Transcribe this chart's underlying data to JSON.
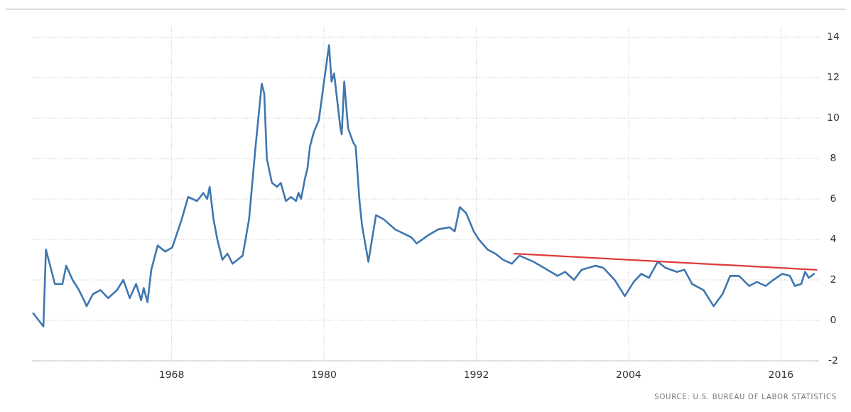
{
  "chart_data": {
    "type": "line",
    "x": [
      1957.1,
      1957.9,
      1958.1,
      1958.6,
      1958.8,
      1959.4,
      1959.7,
      1960.2,
      1960.7,
      1961.1,
      1961.3,
      1961.8,
      1962.4,
      1963.0,
      1963.7,
      1964.2,
      1964.7,
      1965.2,
      1965.6,
      1965.8,
      1966.1,
      1966.4,
      1966.9,
      1967.5,
      1968.05,
      1968.8,
      1969.3,
      1970.0,
      1970.5,
      1970.8,
      1971.0,
      1971.3,
      1971.6,
      1972.0,
      1972.4,
      1972.8,
      1973.2,
      1973.6,
      1974.1,
      1974.6,
      1975.1,
      1975.3,
      1975.5,
      1975.9,
      1976.3,
      1976.6,
      1977.0,
      1977.4,
      1977.8,
      1978.0,
      1978.2,
      1978.5,
      1978.7,
      1978.9,
      1979.2,
      1979.6,
      1980.05,
      1980.4,
      1980.6,
      1980.8,
      1981.3,
      1981.4,
      1981.6,
      1981.9,
      1982.3,
      1982.5,
      1982.8,
      1983.0,
      1983.5,
      1984.1,
      1984.7,
      1985.6,
      1986.9,
      1987.3,
      1988.2,
      1989.0,
      1989.9,
      1990.3,
      1990.7,
      1991.2,
      1991.8,
      1992.2,
      1992.9,
      1993.5,
      1994.1,
      1994.8,
      1995.4,
      1996.5,
      1997.6,
      1998.4,
      1999.0,
      1999.7,
      2000.3,
      2001.4,
      2002.0,
      2002.9,
      2003.7,
      2004.4,
      2005.0,
      2005.6,
      2006.3,
      2006.9,
      2007.8,
      2008.4,
      2009.0,
      2009.9,
      2010.7,
      2011.4,
      2012.0,
      2012.7,
      2013.5,
      2014.1,
      2014.8,
      2015.4,
      2016.1,
      2016.7,
      2017.1,
      2017.6,
      2017.9,
      2018.2,
      2018.6
    ],
    "series": [
      {
        "color": "#3f77b0",
        "values": [
          0.35,
          -0.3,
          3.5,
          2.3,
          1.8,
          1.8,
          2.7,
          2.0,
          1.5,
          1.0,
          0.7,
          1.3,
          1.5,
          1.1,
          1.5,
          2.0,
          1.1,
          1.8,
          1.0,
          1.6,
          0.9,
          2.5,
          3.7,
          3.4,
          3.6,
          5.0,
          6.1,
          5.9,
          6.3,
          6.0,
          6.6,
          5.0,
          4.0,
          3.0,
          3.3,
          2.8,
          3.0,
          3.2,
          5.0,
          8.5,
          11.7,
          11.2,
          8.0,
          6.8,
          6.6,
          6.8,
          5.9,
          6.1,
          5.9,
          6.3,
          6.0,
          7.0,
          7.5,
          8.6,
          9.3,
          9.9,
          12.0,
          13.6,
          11.8,
          12.2,
          9.5,
          9.2,
          11.8,
          9.5,
          8.8,
          8.6,
          5.9,
          4.7,
          2.9,
          5.2,
          5.0,
          4.5,
          4.1,
          3.8,
          4.2,
          4.5,
          4.6,
          4.4,
          5.6,
          5.3,
          4.4,
          4.0,
          3.5,
          3.3,
          3.0,
          2.8,
          3.2,
          2.9,
          2.5,
          2.2,
          2.4,
          2.0,
          2.5,
          2.7,
          2.6,
          2.0,
          1.2,
          1.9,
          2.3,
          2.1,
          2.9,
          2.6,
          2.4,
          2.5,
          1.8,
          1.5,
          0.7,
          1.3,
          2.2,
          2.2,
          1.7,
          1.9,
          1.7,
          2.0,
          2.3,
          2.2,
          1.7,
          1.8,
          2.4,
          2.1,
          2.3
        ]
      },
      {
        "type": "line",
        "color": "#e03a3a",
        "x": [
          1995,
          2018.8
        ],
        "values": [
          3.3,
          2.5
        ]
      }
    ],
    "xlim": [
      1957,
      2019
    ],
    "xticks": [
      1968,
      1980,
      1992,
      2004,
      2016
    ],
    "ylim": [
      -2,
      14.5
    ],
    "yticks": [
      -2,
      0,
      2,
      4,
      6,
      8,
      10,
      12,
      14
    ],
    "grid": true,
    "annotations": [
      "SOURCE: U.S. BUREAU OF LABOR STATISTICS"
    ]
  }
}
